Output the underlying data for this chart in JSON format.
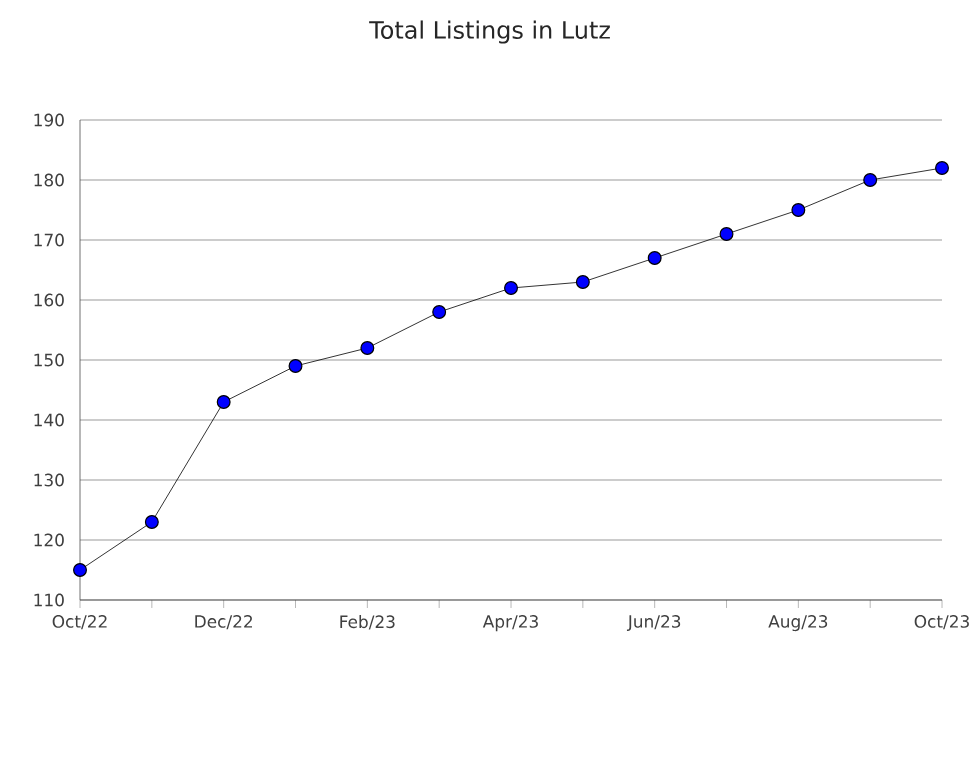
{
  "chart_data": {
    "type": "line",
    "title": "Total Listings in Lutz",
    "categories": [
      "Oct/22",
      null,
      "Dec/22",
      null,
      "Feb/23",
      null,
      "Apr/23",
      null,
      "Jun/23",
      null,
      "Aug/23",
      null,
      "Oct/23"
    ],
    "series": [
      {
        "color": "#0000ff",
        "values": [
          115,
          123,
          143,
          149,
          152,
          158,
          162,
          163,
          167,
          171,
          175,
          180,
          182
        ]
      }
    ],
    "ylim": [
      110,
      190
    ],
    "yticks": [
      110,
      120,
      130,
      140,
      150,
      160,
      170,
      180,
      190
    ],
    "grid": "y",
    "marker": "circle",
    "line_style": "solid"
  }
}
